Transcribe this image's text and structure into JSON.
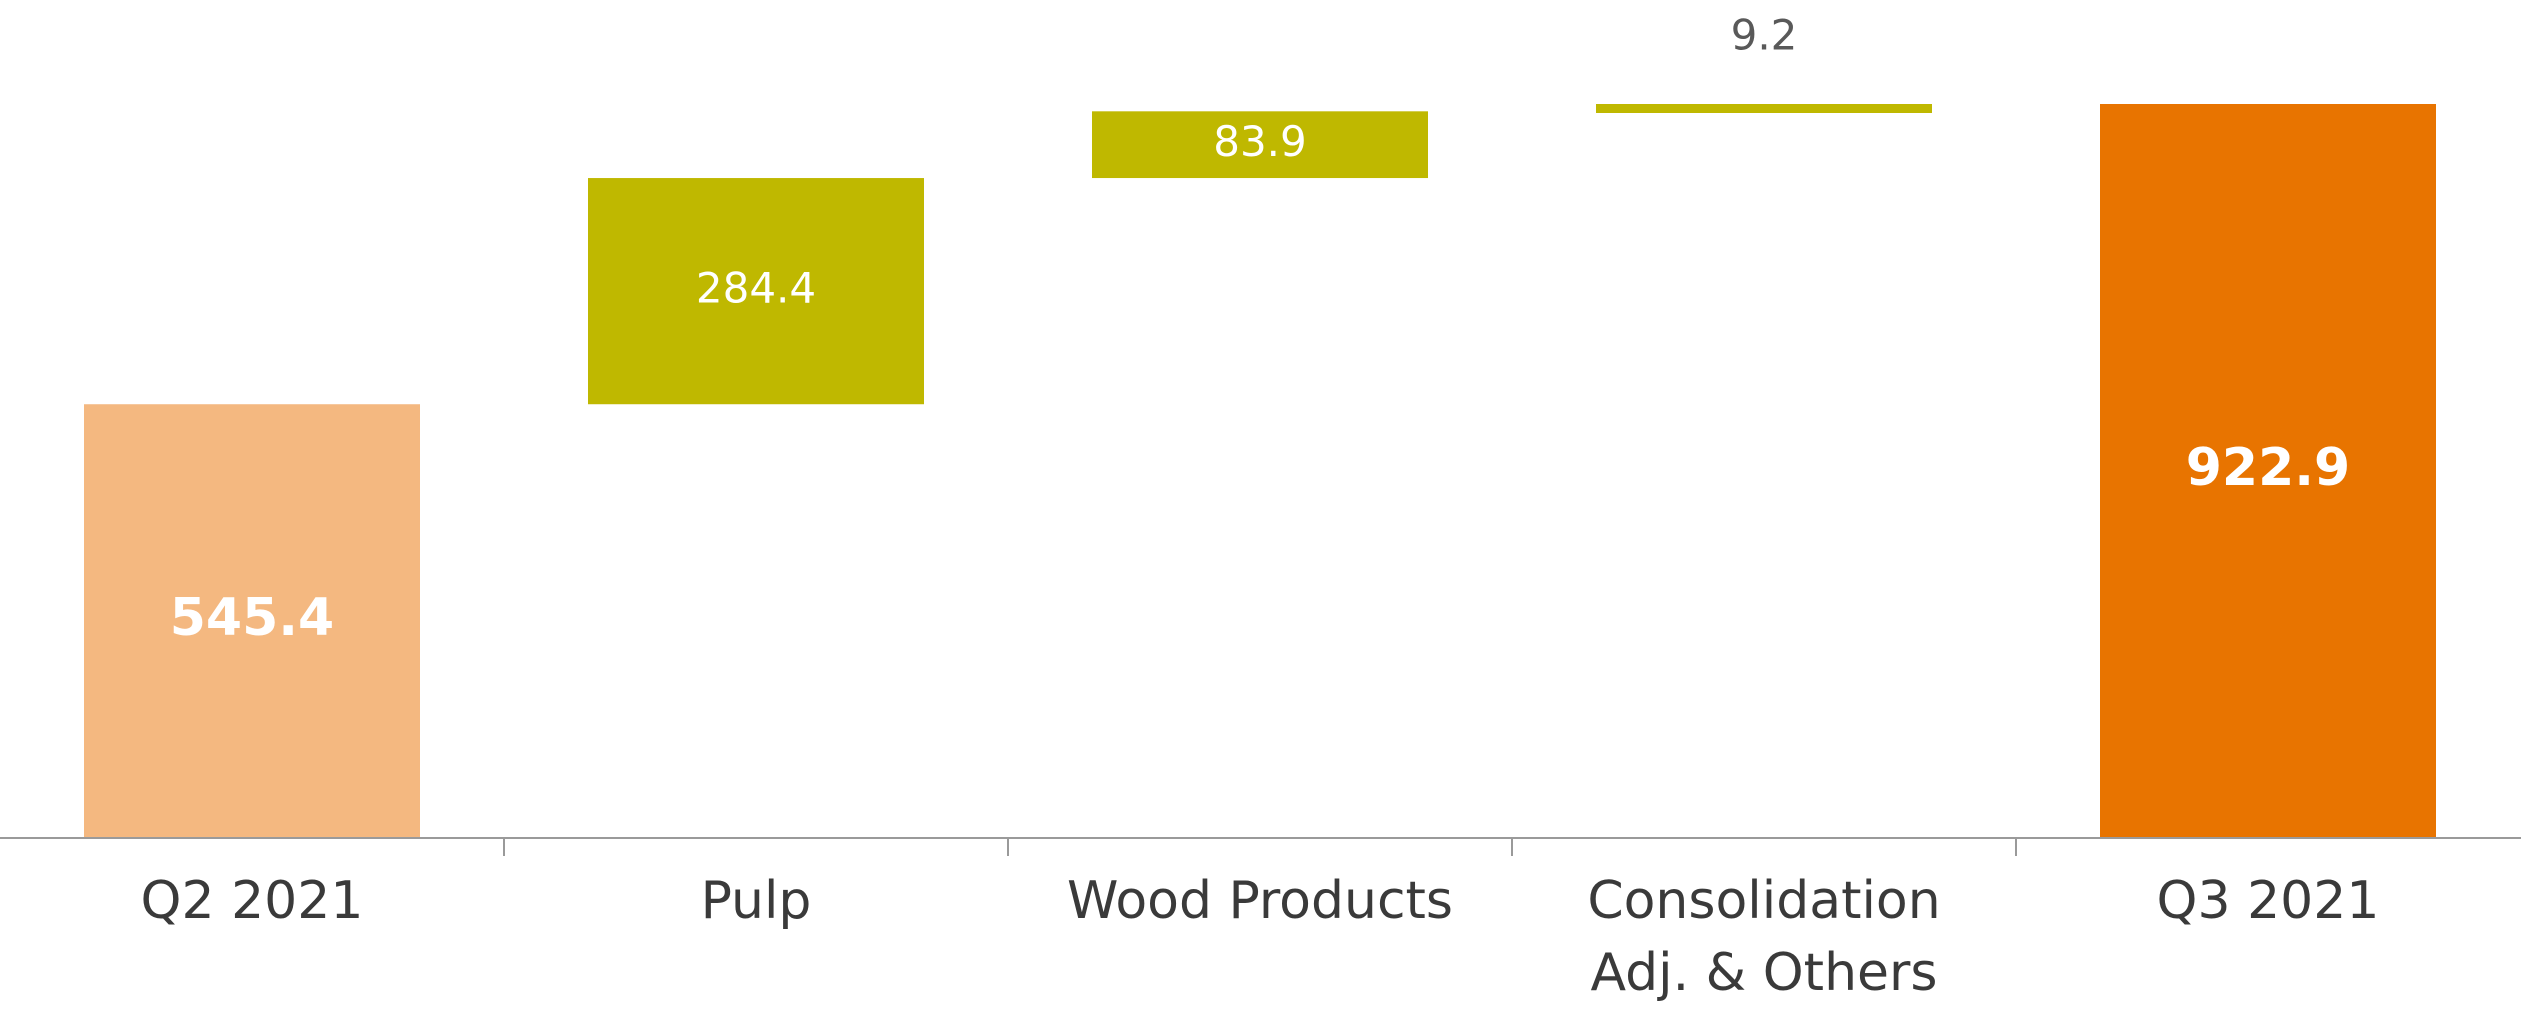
{
  "chart_data": {
    "type": "bar",
    "subtype": "waterfall",
    "categories": [
      [
        "Q2 2021"
      ],
      [
        "Pulp"
      ],
      [
        "Wood Products"
      ],
      [
        "Consolidation",
        "Adj. & Others"
      ],
      [
        "Q3 2021"
      ]
    ],
    "values": [
      545.4,
      284.4,
      83.9,
      9.2,
      922.9
    ],
    "labels": [
      "545.4",
      "284.4",
      "83.9",
      "9.2",
      "922.9"
    ],
    "bar_kind": [
      "total",
      "increase",
      "increase",
      "increase",
      "total"
    ],
    "colors": {
      "start_total": "#f4b880",
      "increase": "#bfb800",
      "end_total": "#e87400",
      "label_inside": "#ffffff",
      "label_outside": "#595959",
      "axis": "#9a9a9a",
      "category_text": "#3a3a3a"
    },
    "ylim": [
      0,
      922.9
    ],
    "grid": false,
    "legend": "none",
    "xlabel": "",
    "ylabel": ""
  }
}
